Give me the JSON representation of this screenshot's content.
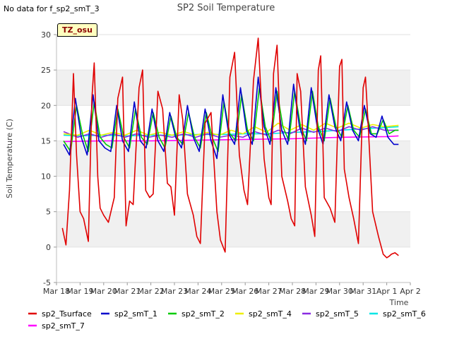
{
  "header": {
    "no_data_note": "No data for f_sp2_smT_3",
    "tz_label": "TZ_osu"
  },
  "chart_data": {
    "type": "line",
    "title": "SP2 Soil Temperature",
    "xlabel": "Time",
    "ylabel": "Soil Temperature (C)",
    "xlim": [
      0,
      15
    ],
    "ylim": [
      -5,
      30
    ],
    "yticks": [
      -5,
      0,
      5,
      10,
      15,
      20,
      25,
      30
    ],
    "xtick_labels": [
      "Mar 18",
      "Mar 19",
      "Mar 20",
      "Mar 21",
      "Mar 22",
      "Mar 23",
      "Mar 24",
      "Mar 25",
      "Mar 26",
      "Mar 27",
      "Mar 28",
      "Mar 29",
      "Mar 30",
      "Mar 31",
      "Apr 1",
      "Apr 2"
    ],
    "grid": "horizontal-bands",
    "legend_position": "bottom",
    "series": [
      {
        "name": "sp2_Tsurface",
        "color": "#e00000",
        "x": [
          0.25,
          0.4,
          0.55,
          0.72,
          0.85,
          1.0,
          1.15,
          1.35,
          1.5,
          1.6,
          1.75,
          1.85,
          2.0,
          2.2,
          2.45,
          2.6,
          2.8,
          2.95,
          3.1,
          3.25,
          3.5,
          3.65,
          3.78,
          3.95,
          4.1,
          4.3,
          4.5,
          4.7,
          4.85,
          5.0,
          5.2,
          5.35,
          5.55,
          5.8,
          5.95,
          6.1,
          6.3,
          6.55,
          6.8,
          6.95,
          7.15,
          7.35,
          7.55,
          7.75,
          7.95,
          8.1,
          8.35,
          8.55,
          8.8,
          9.0,
          9.1,
          9.2,
          9.35,
          9.55,
          9.8,
          9.95,
          10.1,
          10.2,
          10.35,
          10.55,
          10.8,
          10.95,
          11.1,
          11.2,
          11.35,
          11.6,
          11.8,
          12.0,
          12.1,
          12.2,
          12.4,
          12.6,
          12.8,
          13.0,
          13.1,
          13.2,
          13.4,
          13.65,
          13.85,
          14.0,
          14.1,
          14.2,
          14.35,
          14.5
        ],
        "values": [
          2.7,
          0.3,
          8.0,
          24.5,
          13.0,
          5.0,
          4.0,
          0.8,
          21.0,
          26.0,
          10.0,
          5.5,
          4.5,
          3.5,
          7.0,
          21.0,
          24.0,
          3.0,
          6.5,
          6.0,
          22.5,
          25.0,
          8.0,
          7.0,
          7.5,
          22.0,
          19.5,
          9.0,
          8.5,
          4.5,
          21.5,
          18.0,
          7.5,
          4.5,
          1.5,
          0.5,
          17.5,
          19.0,
          5.0,
          1.0,
          -0.7,
          24.0,
          27.5,
          13.0,
          8.0,
          6.0,
          23.5,
          29.5,
          12.5,
          7.0,
          6.0,
          24.5,
          28.5,
          10.0,
          6.5,
          4.0,
          3.0,
          24.5,
          22.0,
          8.5,
          4.5,
          1.5,
          25.0,
          27.0,
          7.0,
          5.5,
          3.5,
          25.5,
          26.5,
          11.0,
          7.0,
          4.0,
          0.5,
          22.5,
          24.0,
          18.0,
          5.0,
          1.5,
          -1.0,
          -1.5,
          -1.3,
          -1.0,
          -0.8,
          -1.2
        ]
      },
      {
        "name": "sp2_smT_1",
        "color": "#0000cc",
        "x": [
          0.3,
          0.55,
          0.8,
          1.05,
          1.3,
          1.55,
          1.8,
          2.05,
          2.3,
          2.55,
          2.8,
          3.05,
          3.3,
          3.55,
          3.8,
          4.05,
          4.3,
          4.55,
          4.8,
          5.05,
          5.3,
          5.55,
          5.8,
          6.05,
          6.3,
          6.55,
          6.8,
          7.05,
          7.3,
          7.55,
          7.8,
          8.05,
          8.3,
          8.55,
          8.8,
          9.05,
          9.3,
          9.55,
          9.8,
          10.05,
          10.3,
          10.55,
          10.8,
          11.05,
          11.3,
          11.55,
          11.8,
          12.05,
          12.3,
          12.55,
          12.8,
          13.05,
          13.3,
          13.55,
          13.8,
          14.05,
          14.3,
          14.5
        ],
        "values": [
          14.5,
          13.0,
          21.0,
          15.5,
          13.0,
          21.5,
          15.0,
          14.0,
          13.5,
          20.0,
          15.0,
          13.5,
          20.5,
          15.0,
          14.0,
          19.5,
          15.0,
          13.5,
          19.0,
          15.5,
          14.0,
          20.0,
          15.5,
          13.5,
          19.5,
          15.0,
          12.5,
          21.5,
          16.0,
          14.5,
          22.5,
          16.5,
          14.5,
          24.0,
          17.0,
          14.5,
          22.5,
          16.5,
          14.5,
          23.0,
          17.0,
          14.5,
          22.5,
          17.0,
          14.5,
          21.5,
          17.0,
          15.0,
          20.5,
          16.5,
          15.0,
          20.0,
          16.0,
          15.5,
          18.5,
          15.5,
          14.5,
          14.5
        ]
      },
      {
        "name": "sp2_smT_2",
        "color": "#00cc00",
        "x": [
          0.3,
          0.6,
          0.85,
          1.1,
          1.35,
          1.6,
          1.85,
          2.1,
          2.35,
          2.6,
          2.85,
          3.1,
          3.35,
          3.6,
          3.85,
          4.1,
          4.35,
          4.6,
          4.85,
          5.1,
          5.35,
          5.6,
          5.85,
          6.1,
          6.35,
          6.6,
          6.85,
          7.1,
          7.35,
          7.6,
          7.85,
          8.1,
          8.35,
          8.6,
          8.85,
          9.1,
          9.35,
          9.6,
          9.85,
          10.1,
          10.35,
          10.6,
          10.85,
          11.1,
          11.35,
          11.6,
          11.85,
          12.1,
          12.35,
          12.6,
          12.85,
          13.1,
          13.35,
          13.6,
          13.85,
          14.1,
          14.35,
          14.5
        ],
        "values": [
          15.0,
          13.5,
          20.0,
          16.0,
          13.5,
          20.5,
          15.5,
          14.5,
          14.0,
          19.5,
          15.5,
          14.0,
          19.5,
          15.5,
          14.5,
          19.0,
          15.5,
          14.0,
          18.5,
          15.5,
          14.5,
          19.0,
          15.5,
          14.0,
          19.0,
          15.5,
          13.5,
          20.5,
          16.0,
          15.0,
          21.5,
          16.5,
          15.0,
          22.5,
          17.0,
          15.0,
          22.0,
          17.0,
          15.0,
          22.0,
          17.0,
          15.0,
          22.0,
          17.0,
          15.0,
          21.0,
          17.0,
          15.5,
          20.0,
          16.5,
          15.5,
          19.5,
          16.0,
          16.0,
          18.0,
          16.0,
          16.5,
          16.5
        ]
      },
      {
        "name": "sp2_smT_4",
        "color": "#eeee00",
        "x": [
          0.3,
          0.9,
          1.4,
          1.9,
          2.4,
          2.9,
          3.4,
          3.9,
          4.4,
          4.9,
          5.4,
          5.9,
          6.4,
          6.9,
          7.4,
          7.9,
          8.4,
          8.9,
          9.4,
          9.9,
          10.4,
          10.9,
          11.4,
          11.9,
          12.4,
          12.9,
          13.4,
          13.9,
          14.5
        ],
        "values": [
          16.0,
          15.8,
          16.5,
          15.8,
          16.2,
          15.8,
          16.5,
          15.8,
          16.2,
          15.8,
          16.3,
          15.8,
          16.2,
          15.8,
          16.5,
          16.0,
          17.0,
          16.2,
          17.5,
          16.5,
          17.3,
          16.5,
          17.5,
          16.8,
          17.5,
          16.8,
          17.3,
          17.0,
          17.2
        ]
      },
      {
        "name": "sp2_smT_5",
        "color": "#8a2be2",
        "x": [
          0.3,
          0.9,
          1.4,
          1.9,
          2.4,
          2.9,
          3.4,
          3.9,
          4.4,
          4.9,
          5.4,
          5.9,
          6.4,
          6.9,
          7.4,
          7.9,
          8.4,
          8.9,
          9.4,
          9.9,
          10.4,
          10.9,
          11.4,
          11.9,
          12.4,
          12.9,
          13.4,
          13.9,
          14.5
        ],
        "values": [
          16.3,
          15.5,
          16.0,
          15.5,
          16.0,
          15.5,
          16.0,
          15.5,
          15.8,
          15.5,
          16.0,
          15.5,
          16.0,
          15.5,
          15.8,
          15.5,
          16.3,
          15.8,
          16.5,
          16.0,
          16.8,
          16.2,
          16.8,
          16.3,
          17.0,
          16.5,
          17.0,
          16.5,
          16.5
        ]
      },
      {
        "name": "sp2_smT_6",
        "color": "#00e5e5",
        "x": [
          0.3,
          1.0,
          2.0,
          3.0,
          4.0,
          5.0,
          6.0,
          7.0,
          8.0,
          9.0,
          10.0,
          11.0,
          12.0,
          13.0,
          14.0,
          14.5
        ],
        "values": [
          15.8,
          15.7,
          15.8,
          15.7,
          15.8,
          15.8,
          15.9,
          15.9,
          16.0,
          16.0,
          16.2,
          16.3,
          16.5,
          16.7,
          16.9,
          17.0
        ]
      },
      {
        "name": "sp2_smT_7",
        "color": "#ff00ff",
        "x": [
          0.3,
          2.0,
          4.0,
          6.0,
          8.0,
          10.0,
          12.0,
          14.0,
          14.5
        ],
        "values": [
          14.9,
          15.0,
          15.0,
          15.1,
          15.2,
          15.3,
          15.5,
          15.6,
          15.7
        ]
      }
    ]
  }
}
